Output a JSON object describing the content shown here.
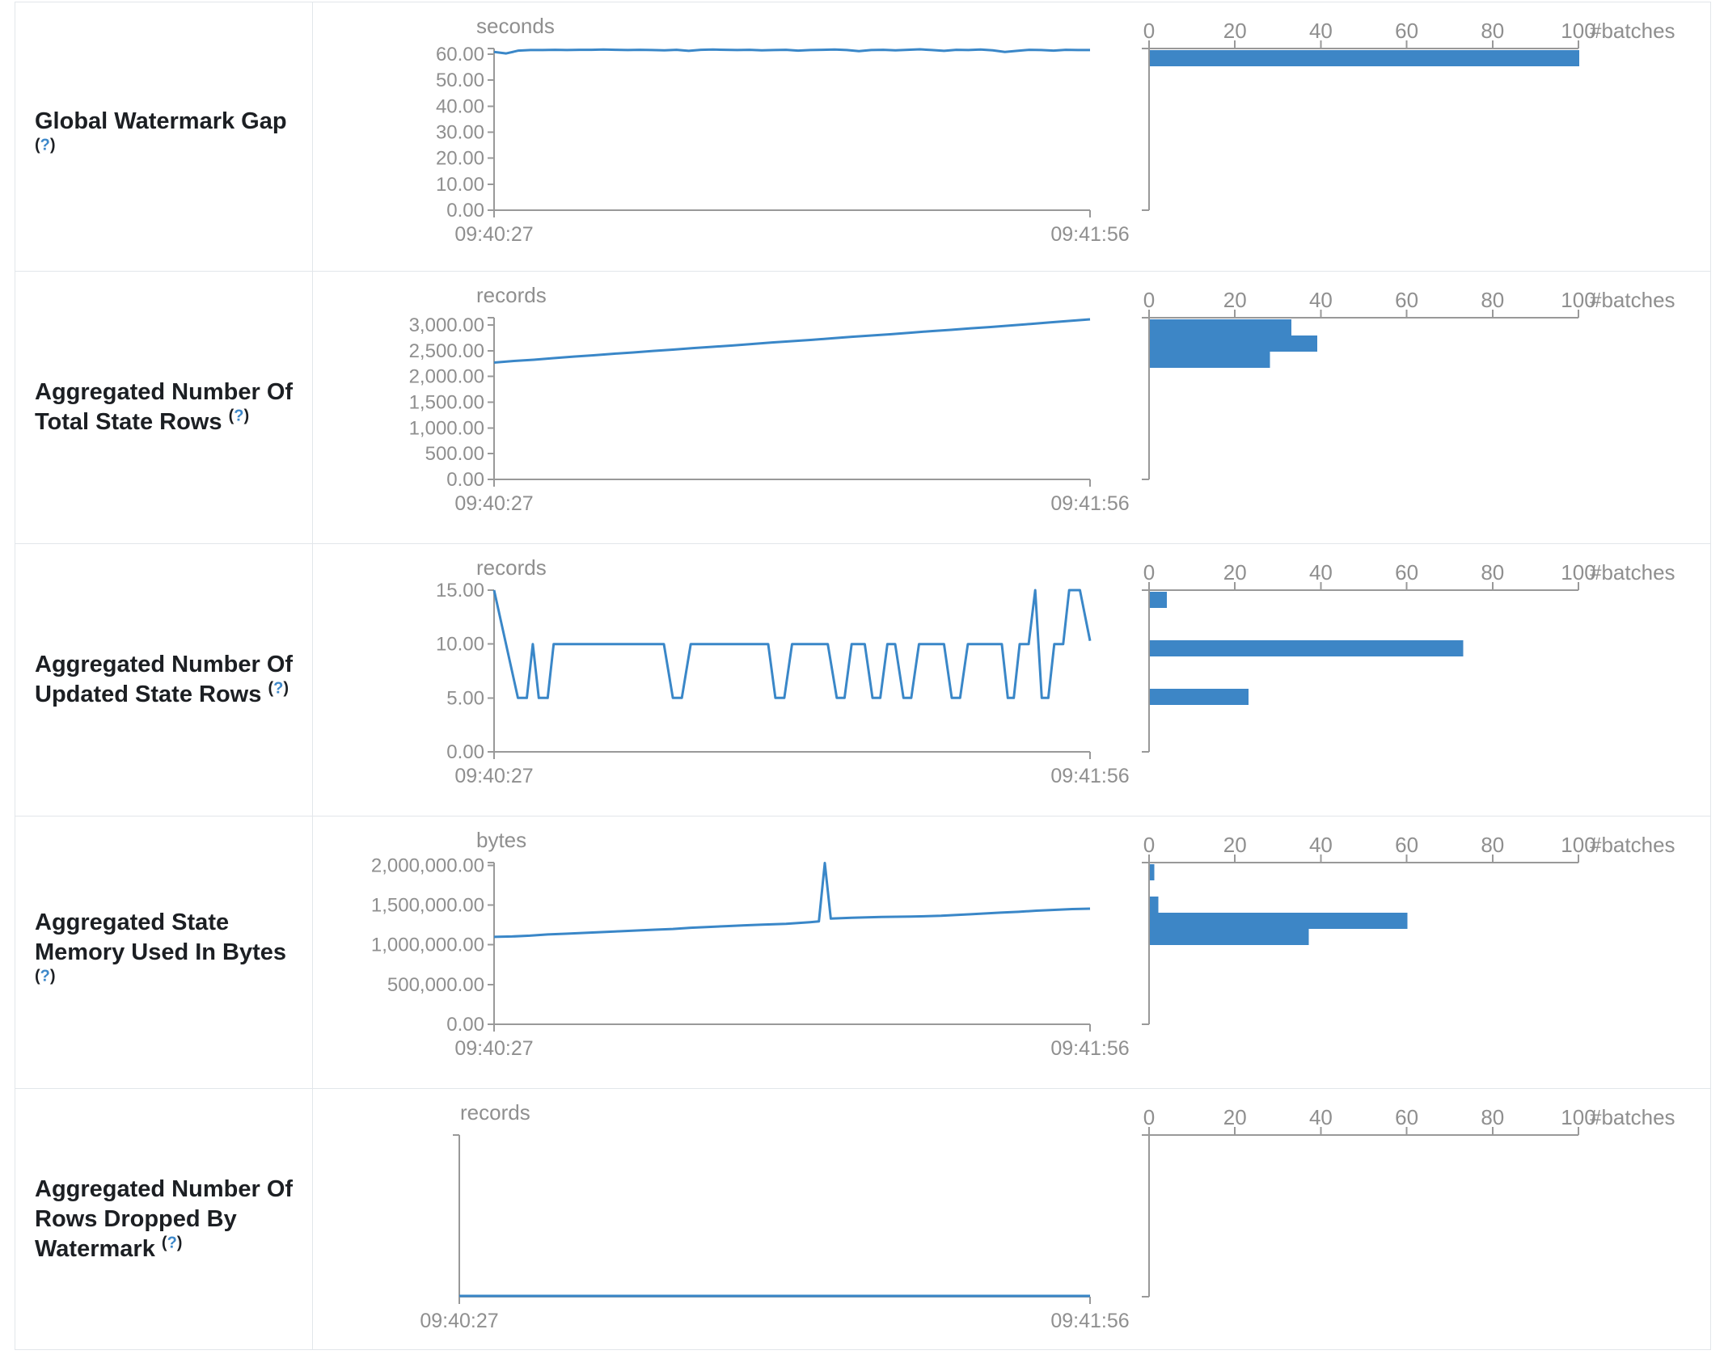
{
  "colors": {
    "accent_blue": "#3d86c6",
    "line_blue": "#3a87c8",
    "axis_gray": "#999999",
    "tick_text_gray": "#8f8f8f",
    "label_text": "#1c1f23",
    "help_blue": "#3c87c9",
    "border_gray": "#e2e6ea"
  },
  "rows": [
    {
      "label": {
        "lines": [
          "Global Watermark Gap"
        ],
        "help": "(?)",
        "help_own_line": true
      },
      "chart_data": {
        "type": "line+histogram",
        "unit": "seconds",
        "x_ticks": [
          "09:40:27",
          "09:41:56"
        ],
        "y_domain_max": 62.2,
        "y_ticks": [
          {
            "v": 60,
            "label": "60.00"
          },
          {
            "v": 50,
            "label": "50.00"
          },
          {
            "v": 40,
            "label": "40.00"
          },
          {
            "v": 30,
            "label": "30.00"
          },
          {
            "v": 20,
            "label": "20.00"
          },
          {
            "v": 10,
            "label": "10.00"
          },
          {
            "v": 0,
            "label": "0.00"
          }
        ],
        "line_values": [
          60.9,
          60.3,
          61.4,
          61.6,
          61.6,
          61.7,
          61.6,
          61.7,
          61.7,
          61.8,
          61.7,
          61.6,
          61.7,
          61.6,
          61.5,
          61.7,
          61.3,
          61.7,
          61.8,
          61.7,
          61.6,
          61.7,
          61.5,
          61.6,
          61.7,
          61.4,
          61.6,
          61.7,
          61.8,
          61.6,
          61.2,
          61.6,
          61.7,
          61.5,
          61.7,
          61.9,
          61.6,
          61.3,
          61.7,
          61.6,
          61.8,
          61.5,
          60.9,
          61.3,
          61.7,
          61.6,
          61.4,
          61.7,
          61.6,
          61.6
        ],
        "histogram": {
          "x_ticks": [
            "0",
            "20",
            "40",
            "60",
            "80",
            "100"
          ],
          "x_label": "#batches",
          "x_max": 100,
          "bin_count": 10,
          "counts_top_to_bottom": [
            100,
            0,
            0,
            0,
            0,
            0,
            0,
            0,
            0,
            0
          ]
        }
      }
    },
    {
      "label": {
        "lines": [
          "Aggregated Number Of",
          "Total State Rows"
        ],
        "help": "(?)",
        "help_own_line": false
      },
      "chart_data": {
        "type": "line+histogram",
        "unit": "records",
        "x_ticks": [
          "09:40:27",
          "09:41:56"
        ],
        "y_domain_max": 3141,
        "y_ticks": [
          {
            "v": 3000,
            "label": "3,000.00"
          },
          {
            "v": 2500,
            "label": "2,500.00"
          },
          {
            "v": 2000,
            "label": "2,000.00"
          },
          {
            "v": 1500,
            "label": "1,500.00"
          },
          {
            "v": 1000,
            "label": "1,000.00"
          },
          {
            "v": 500,
            "label": "500.00"
          },
          {
            "v": 0,
            "label": "0.00"
          }
        ],
        "line_values": [
          2270,
          2300,
          2325,
          2355,
          2385,
          2410,
          2440,
          2465,
          2495,
          2520,
          2550,
          2575,
          2600,
          2630,
          2660,
          2685,
          2710,
          2740,
          2770,
          2795,
          2820,
          2850,
          2880,
          2905,
          2935,
          2960,
          2990,
          3020,
          3050,
          3080,
          3110
        ],
        "histogram": {
          "x_ticks": [
            "0",
            "20",
            "40",
            "60",
            "80",
            "100"
          ],
          "x_label": "#batches",
          "x_max": 100,
          "bin_count": 10,
          "counts_top_to_bottom": [
            33,
            39,
            28,
            0,
            0,
            0,
            0,
            0,
            0,
            0
          ]
        }
      }
    },
    {
      "label": {
        "lines": [
          "Aggregated Number Of",
          "Updated State Rows"
        ],
        "help": "(?)",
        "help_own_line": false
      },
      "chart_data": {
        "type": "line+histogram",
        "unit": "records",
        "x_ticks": [
          "09:40:27",
          "09:41:56"
        ],
        "y_domain_max": 15,
        "y_ticks": [
          {
            "v": 15,
            "label": "15.00"
          },
          {
            "v": 10,
            "label": "10.00"
          },
          {
            "v": 5,
            "label": "5.00"
          },
          {
            "v": 0,
            "label": "0.00"
          }
        ],
        "line_points": [
          [
            0,
            15
          ],
          [
            0.04,
            5
          ],
          [
            0.055,
            5
          ],
          [
            0.065,
            10
          ],
          [
            0.075,
            5
          ],
          [
            0.09,
            5
          ],
          [
            0.1,
            10
          ],
          [
            0.285,
            10
          ],
          [
            0.3,
            5
          ],
          [
            0.315,
            5
          ],
          [
            0.33,
            10
          ],
          [
            0.46,
            10
          ],
          [
            0.472,
            5
          ],
          [
            0.487,
            5
          ],
          [
            0.5,
            10
          ],
          [
            0.56,
            10
          ],
          [
            0.575,
            5
          ],
          [
            0.588,
            5
          ],
          [
            0.6,
            10
          ],
          [
            0.622,
            10
          ],
          [
            0.635,
            5
          ],
          [
            0.648,
            5
          ],
          [
            0.66,
            10
          ],
          [
            0.673,
            10
          ],
          [
            0.687,
            5
          ],
          [
            0.7,
            5
          ],
          [
            0.713,
            10
          ],
          [
            0.755,
            10
          ],
          [
            0.768,
            5
          ],
          [
            0.782,
            5
          ],
          [
            0.795,
            10
          ],
          [
            0.852,
            10
          ],
          [
            0.862,
            5
          ],
          [
            0.872,
            5
          ],
          [
            0.882,
            10
          ],
          [
            0.897,
            10
          ],
          [
            0.908,
            15
          ],
          [
            0.919,
            5
          ],
          [
            0.93,
            5
          ],
          [
            0.94,
            10
          ],
          [
            0.955,
            10
          ],
          [
            0.965,
            15
          ],
          [
            0.983,
            15
          ],
          [
            1.0,
            10.3
          ]
        ],
        "histogram": {
          "x_ticks": [
            "0",
            "20",
            "40",
            "60",
            "80",
            "100"
          ],
          "x_label": "#batches",
          "x_max": 100,
          "bin_count": 10,
          "counts_top_to_bottom": [
            4,
            0,
            0,
            73,
            0,
            0,
            23,
            0,
            0,
            0
          ]
        }
      }
    },
    {
      "label": {
        "lines": [
          "Aggregated State",
          "Memory Used In Bytes"
        ],
        "help": "(?)",
        "help_own_line": true
      },
      "chart_data": {
        "type": "line+histogram",
        "unit": "bytes",
        "x_ticks": [
          "09:40:27",
          "09:41:56"
        ],
        "y_domain_max": 2035000,
        "y_ticks": [
          {
            "v": 2000000,
            "label": "2,000,000.00"
          },
          {
            "v": 1500000,
            "label": "1,500,000.00"
          },
          {
            "v": 1000000,
            "label": "1,000,000.00"
          },
          {
            "v": 500000,
            "label": "500,000.00"
          },
          {
            "v": 0,
            "label": "0.00"
          }
        ],
        "line_points": [
          [
            0,
            1100000
          ],
          [
            0.03,
            1105000
          ],
          [
            0.06,
            1115000
          ],
          [
            0.09,
            1130000
          ],
          [
            0.12,
            1140000
          ],
          [
            0.15,
            1150000
          ],
          [
            0.18,
            1160000
          ],
          [
            0.21,
            1170000
          ],
          [
            0.24,
            1180000
          ],
          [
            0.27,
            1190000
          ],
          [
            0.3,
            1200000
          ],
          [
            0.33,
            1215000
          ],
          [
            0.36,
            1225000
          ],
          [
            0.39,
            1235000
          ],
          [
            0.42,
            1245000
          ],
          [
            0.45,
            1255000
          ],
          [
            0.47,
            1260000
          ],
          [
            0.49,
            1265000
          ],
          [
            0.51,
            1275000
          ],
          [
            0.53,
            1285000
          ],
          [
            0.545,
            1295000
          ],
          [
            0.555,
            2030000
          ],
          [
            0.565,
            1330000
          ],
          [
            0.6,
            1340000
          ],
          [
            0.65,
            1350000
          ],
          [
            0.7,
            1355000
          ],
          [
            0.75,
            1365000
          ],
          [
            0.8,
            1385000
          ],
          [
            0.85,
            1405000
          ],
          [
            0.88,
            1415000
          ],
          [
            0.91,
            1430000
          ],
          [
            0.94,
            1440000
          ],
          [
            0.97,
            1450000
          ],
          [
            1.0,
            1455000
          ]
        ],
        "histogram": {
          "x_ticks": [
            "0",
            "20",
            "40",
            "60",
            "80",
            "100"
          ],
          "x_label": "#batches",
          "x_max": 100,
          "bin_count": 10,
          "counts_top_to_bottom": [
            1,
            0,
            2,
            60,
            37,
            0,
            0,
            0,
            0,
            0
          ]
        }
      }
    },
    {
      "label": {
        "lines": [
          "Aggregated Number Of",
          "Rows Dropped By",
          "Watermark"
        ],
        "help": "(?)",
        "help_own_line": false
      },
      "chart_data": {
        "type": "line+histogram",
        "unit": "records",
        "x_ticks": [
          "09:40:27",
          "09:41:56"
        ],
        "y_domain_max": null,
        "y_ticks": [],
        "line_points": [
          [
            0,
            0
          ],
          [
            1,
            0
          ]
        ],
        "histogram": {
          "x_ticks": [
            "0",
            "20",
            "40",
            "60",
            "80",
            "100"
          ],
          "x_label": "#batches",
          "x_max": 100,
          "bin_count": 10,
          "counts_top_to_bottom": [
            0,
            0,
            0,
            0,
            0,
            0,
            0,
            0,
            0,
            0
          ]
        }
      }
    }
  ]
}
